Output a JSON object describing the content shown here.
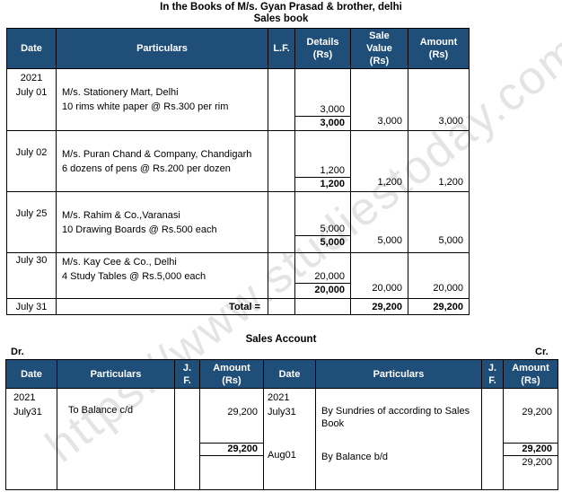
{
  "heading": {
    "line1": "In the Books of M/s. Gyan Prasad & brother, delhi",
    "line2": "Sales book"
  },
  "sales_book": {
    "headers": [
      "Date",
      "Particulars",
      "L.F.",
      "Details\n(Rs)",
      "Sale\nValue\n(Rs)",
      "Amount\n(Rs)"
    ],
    "entries": [
      {
        "year": "2021",
        "date": "July 01",
        "party": "M/s. Stationery Mart, Delhi",
        "item": "10 rims white paper @ Rs.300 per rim",
        "detail": "3,000",
        "detail_total": "3,000",
        "sale_value": "3,000",
        "amount": "3,000"
      },
      {
        "date": "July 02",
        "party": "M/s. Puran Chand & Company, Chandigarh",
        "item": "6 dozens of pens @ Rs.200 per dozen",
        "detail": "1,200",
        "detail_total": "1,200",
        "sale_value": "1,200",
        "amount": "1,200"
      },
      {
        "date": "July 25",
        "party": "M/s. Rahim & Co.,Varanasi",
        "item": "10 Drawing Boards @ Rs.500 each",
        "detail": "5,000",
        "detail_total": "5,000",
        "sale_value": "5,000",
        "amount": "5,000"
      },
      {
        "date": "July 30",
        "party": "M/s. Kay Cee & Co., Delhi",
        "item": "4 Study Tables @ Rs.5,000 each",
        "detail": "20,000",
        "detail_total": "20,000",
        "sale_value": "20,000",
        "amount": "20,000"
      }
    ],
    "total_row": {
      "date": "July 31",
      "label": "Total =",
      "sale_value": "29,200",
      "amount": "29,200"
    }
  },
  "sales_account": {
    "title": "Sales Account",
    "dr": "Dr.",
    "cr": "Cr.",
    "headers": [
      "Date",
      "Particulars",
      "J.\nF.",
      "Amount\n(Rs)",
      "Date",
      "Particulars",
      "J.\nF.",
      "Amount\n(Rs)"
    ],
    "debit": {
      "year": "2021",
      "date": "July31",
      "particulars": "To Balance c/d",
      "amount": "29,200",
      "total": "29,200"
    },
    "credit": {
      "year": "2021",
      "date": "July31",
      "particulars": "By Sundries of according to Sales Book",
      "amount": "29,200",
      "total": "29,200",
      "bd_date": "Aug01",
      "bd_particulars": "By Balance b/d",
      "bd_amount": "29,200"
    }
  },
  "watermark": "https://www.studiestoday.com",
  "colors": {
    "header_bg": "#1f4e79",
    "header_text": "#ffffff"
  }
}
